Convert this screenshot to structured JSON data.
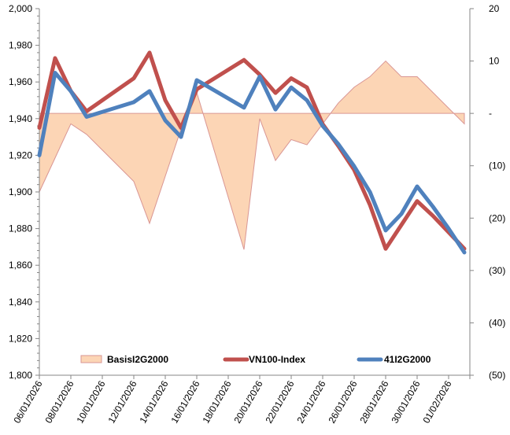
{
  "chart_data": {
    "type": "line",
    "title": "",
    "xlabel": "",
    "ylabel": "",
    "y2label": "",
    "grid": false,
    "legend_position": "bottom-inside",
    "x_tick_labels": [
      "06/01/2026",
      "08/01/2026",
      "10/01/2026",
      "12/01/2026",
      "14/01/2026",
      "16/01/2026",
      "18/01/2026",
      "20/01/2026",
      "22/01/2026",
      "24/01/2026",
      "26/01/2026",
      "28/01/2026",
      "30/01/2026",
      "01/02/2026"
    ],
    "x_tick_start": "06/01/2026",
    "x_tick_step_days": 2,
    "y_left": {
      "range": [
        1800,
        2000
      ],
      "ticks": [
        1800,
        1820,
        1840,
        1860,
        1880,
        1900,
        1920,
        1940,
        1960,
        1980,
        2000
      ],
      "tick_labels": [
        "1,800",
        "1,820",
        "1,840",
        "1,860",
        "1,880",
        "1,900",
        "1,920",
        "1,940",
        "1,960",
        "1,980",
        "2,000"
      ]
    },
    "y_right": {
      "range": [
        -50,
        20
      ],
      "ticks": [
        -50,
        -40,
        -30,
        -20,
        -10,
        0,
        10,
        20
      ],
      "tick_labels": [
        "(50)",
        "(40)",
        "(30)",
        "(20)",
        "(10)",
        "-",
        "10",
        "20"
      ]
    },
    "x_day_offsets": [
      0,
      1,
      2,
      3,
      6,
      7,
      8,
      9,
      10,
      13,
      14,
      15,
      16,
      17,
      18,
      19,
      20,
      21,
      22,
      23,
      24,
      25,
      26,
      27
    ],
    "dates": [
      "06/01/2026",
      "07/01/2026",
      "08/01/2026",
      "09/01/2026",
      "12/01/2026",
      "13/01/2026",
      "14/01/2026",
      "15/01/2026",
      "16/01/2026",
      "19/01/2026",
      "20/01/2026",
      "21/01/2026",
      "22/01/2026",
      "23/01/2026",
      "24/01/2026",
      "25/01/2026",
      "26/01/2026",
      "27/01/2026",
      "28/01/2026",
      "29/01/2026",
      "30/01/2026",
      "31/01/2026",
      "01/02/2026",
      "02/02/2026"
    ],
    "series": [
      {
        "name": "BasisI2G2000",
        "type": "area",
        "axis": "right",
        "color": "#FCD5B5",
        "stroke": "#D99694",
        "values": [
          -15,
          -8.5,
          -2,
          -4,
          -13,
          -21,
          -12,
          -3,
          4,
          -26,
          -1,
          -9,
          -5,
          -6,
          -2,
          2,
          5,
          7,
          10,
          7,
          7,
          4,
          1,
          -2
        ]
      },
      {
        "name": "VN100-Index",
        "type": "line",
        "axis": "left",
        "color": "#C0504D",
        "values": [
          1935,
          1973,
          1955,
          1944,
          1962,
          1976,
          1950,
          1935,
          1956,
          1972,
          1964,
          1954,
          1962,
          1957,
          1937,
          1925,
          1912,
          1893,
          1869,
          1882,
          1895,
          1887,
          1878,
          1869
        ]
      },
      {
        "name": "41I2G2000",
        "type": "line",
        "axis": "left",
        "color": "#4F81BD",
        "values": [
          1920,
          1965,
          1955,
          1941,
          1949,
          1955,
          1939,
          1930,
          1961,
          1946,
          1963,
          1945,
          1957,
          1950,
          1936,
          1926,
          1914,
          1900,
          1879,
          1888,
          1903,
          1892,
          1880,
          1867
        ]
      }
    ]
  }
}
